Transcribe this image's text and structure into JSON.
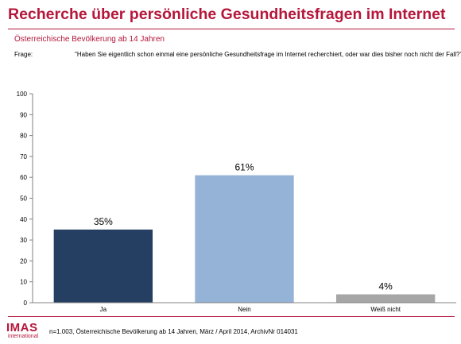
{
  "header": {
    "title": "Recherche über persönliche Gesundheitsfragen im Internet",
    "subtitle": "Österreichische Bevölkerung ab 14 Jahren",
    "question_label": "Frage:",
    "question_text": "\"Haben Sie eigentlich schon einmal eine persönliche Gesundheitsfrage im Internet recherchiert, oder war dies bisher noch nicht der Fall?\""
  },
  "footer": {
    "logo": "IMAS",
    "logo_sub": "international",
    "source": "n=1.003, Österreichische Bevölkerung ab 14 Jahren, März / April  2014, ArchivNr  014031"
  },
  "chart_data": {
    "type": "bar",
    "categories": [
      "Ja",
      "Nein",
      "Weiß nicht"
    ],
    "values": [
      35,
      61,
      4
    ],
    "data_labels": [
      "35%",
      "61%",
      "4%"
    ],
    "colors": [
      "#243f61",
      "#95b3d7",
      "#a6a6a6"
    ],
    "ylim": [
      0,
      100
    ],
    "yticks": [
      0,
      10,
      20,
      30,
      40,
      50,
      60,
      70,
      80,
      90,
      100
    ],
    "grid": false,
    "legend": "none"
  }
}
